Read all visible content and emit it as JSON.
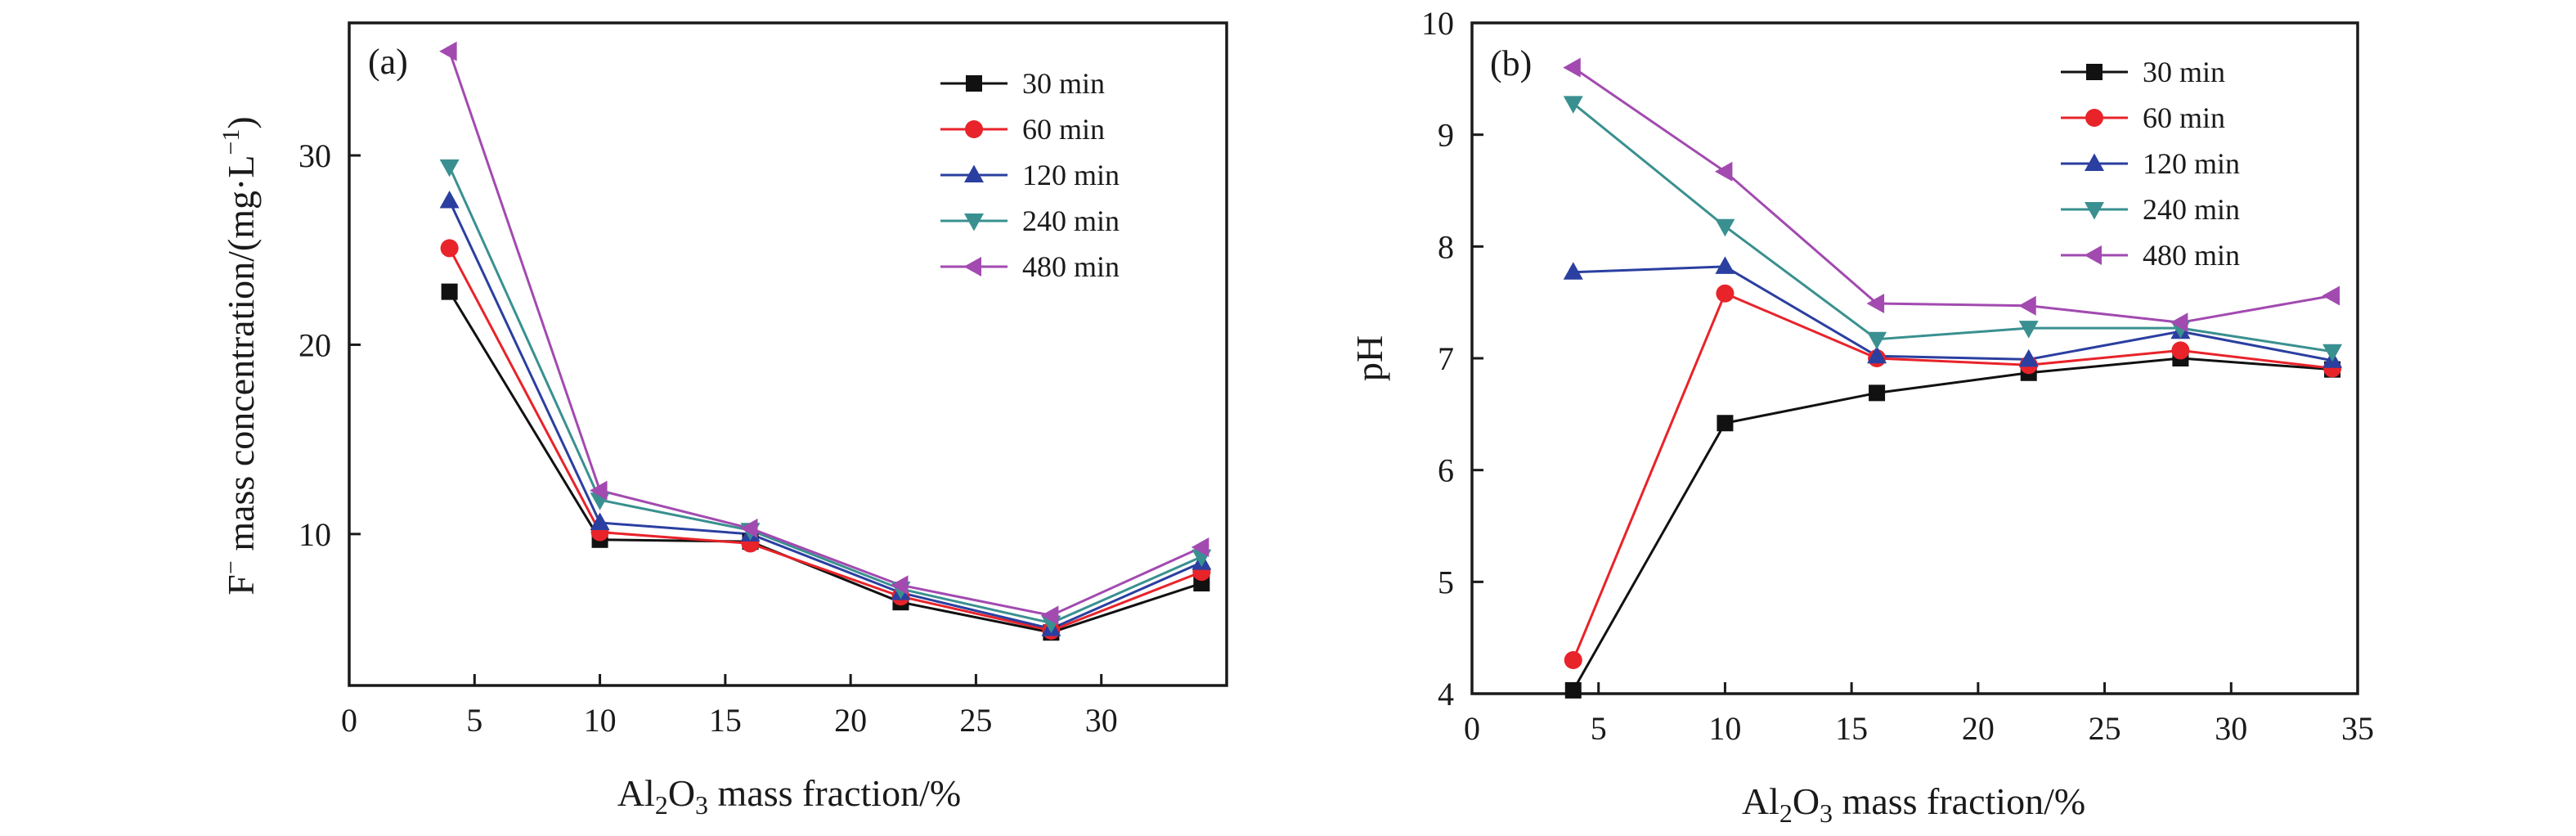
{
  "chart_data": [
    {
      "type": "line",
      "panel_label": "(a)",
      "ylabel_main": "F",
      "ylabel_sup": "−",
      "ylabel_rest": " mass concentration/(mg·L",
      "ylabel_sup2": "−1",
      "ylabel_end": ")",
      "xlabel_a": "Al",
      "xlabel_sub1": "2",
      "xlabel_b": "O",
      "xlabel_sub2": "3",
      "xlabel_c": " mass fraction/%",
      "xlim": [
        0,
        35
      ],
      "ylim": [
        2,
        37
      ],
      "xticks": [
        0,
        5,
        10,
        15,
        20,
        25,
        30
      ],
      "yticks": [
        10,
        20,
        30
      ],
      "x": [
        4,
        10,
        16,
        22,
        28,
        34
      ],
      "series": [
        {
          "name": "30 min",
          "color": "#111111",
          "marker": "square",
          "values": [
            22.8,
            9.7,
            9.6,
            6.4,
            4.8,
            7.4
          ]
        },
        {
          "name": "60 min",
          "color": "#e8232a",
          "marker": "circle",
          "values": [
            25.1,
            10.1,
            9.5,
            6.7,
            4.9,
            8.0
          ]
        },
        {
          "name": "120 min",
          "color": "#2b3fa0",
          "marker": "triangle-up",
          "values": [
            27.6,
            10.6,
            10.0,
            6.9,
            5.0,
            8.5
          ]
        },
        {
          "name": "240 min",
          "color": "#3a9090",
          "marker": "triangle-down",
          "values": [
            29.4,
            11.8,
            10.2,
            7.1,
            5.3,
            8.8
          ]
        },
        {
          "name": "480 min",
          "color": "#a24ab0",
          "marker": "triangle-left",
          "values": [
            35.5,
            12.3,
            10.3,
            7.3,
            5.7,
            9.3
          ]
        }
      ],
      "legend_position": "top-right"
    },
    {
      "type": "line",
      "panel_label": "(b)",
      "ylabel": "pH",
      "xlabel_a": "Al",
      "xlabel_sub1": "2",
      "xlabel_b": "O",
      "xlabel_sub2": "3",
      "xlabel_c": " mass fraction/%",
      "xlim": [
        0,
        35
      ],
      "ylim": [
        4,
        10
      ],
      "xticks": [
        0,
        5,
        10,
        15,
        20,
        25,
        30,
        35
      ],
      "yticks": [
        4,
        5,
        6,
        7,
        8,
        9,
        10
      ],
      "x": [
        4,
        10,
        16,
        22,
        28,
        34
      ],
      "series": [
        {
          "name": "30 min",
          "color": "#111111",
          "marker": "square",
          "values": [
            4.03,
            6.42,
            6.69,
            6.87,
            7.0,
            6.9
          ]
        },
        {
          "name": "60 min",
          "color": "#e8232a",
          "marker": "circle",
          "values": [
            4.3,
            7.58,
            7.0,
            6.94,
            7.07,
            6.91
          ]
        },
        {
          "name": "120 min",
          "color": "#2b3fa0",
          "marker": "triangle-up",
          "values": [
            7.77,
            7.82,
            7.02,
            6.99,
            7.24,
            6.98
          ]
        },
        {
          "name": "240 min",
          "color": "#3a9090",
          "marker": "triangle-down",
          "values": [
            9.28,
            8.18,
            7.17,
            7.27,
            7.27,
            7.06
          ]
        },
        {
          "name": "480 min",
          "color": "#a24ab0",
          "marker": "triangle-left",
          "values": [
            9.6,
            8.67,
            7.49,
            7.47,
            7.32,
            7.56
          ]
        }
      ],
      "legend_position": "top-right"
    }
  ]
}
